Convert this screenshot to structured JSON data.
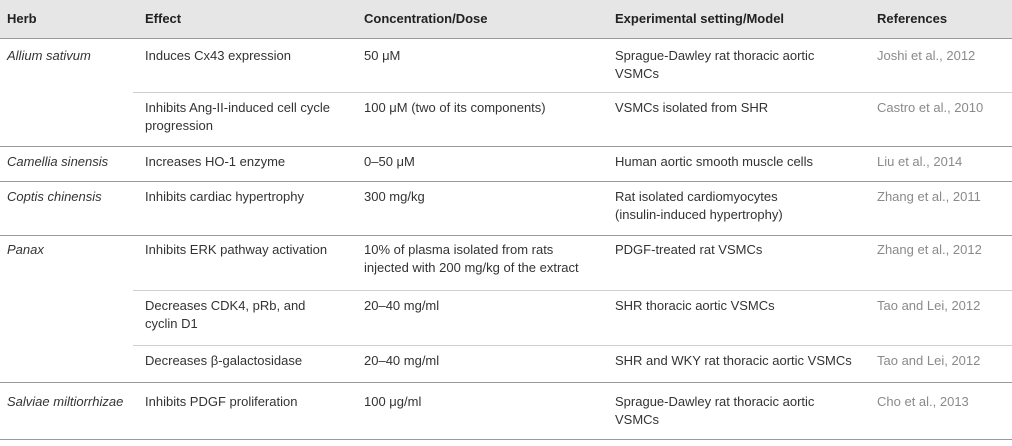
{
  "header": {
    "herb": "Herb",
    "effect": "Effect",
    "concentration": "Concentration/Dose",
    "setting": "Experimental setting/Model",
    "references": "References"
  },
  "rows": [
    {
      "herb": "Allium sativum",
      "effect": [
        "Induces Cx43 expression"
      ],
      "dose": [
        "50 μM"
      ],
      "setting": [
        "Sprague-Dawley rat thoracic aortic",
        "VSMCs"
      ],
      "ref": "Joshi et al., 2012"
    },
    {
      "herb": "",
      "effect": [
        "Inhibits Ang-II-induced cell cycle",
        "progression"
      ],
      "dose": [
        "100 μM (two of its components)"
      ],
      "setting": [
        "VSMCs isolated from SHR"
      ],
      "ref": "Castro et al., 2010"
    },
    {
      "herb": "Camellia sinensis",
      "effect": [
        "Increases HO-1 enzyme"
      ],
      "dose": [
        "0–50 μM"
      ],
      "setting": [
        "Human aortic smooth muscle cells"
      ],
      "ref": "Liu et al., 2014"
    },
    {
      "herb": "Coptis chinensis",
      "effect": [
        "Inhibits cardiac hypertrophy"
      ],
      "dose": [
        "300 mg/kg"
      ],
      "setting": [
        "Rat isolated cardiomyocytes",
        "(insulin-induced hypertrophy)"
      ],
      "ref": "Zhang et al., 2011"
    },
    {
      "herb": "Panax",
      "effect": [
        "Inhibits ERK pathway activation"
      ],
      "dose": [
        "10% of plasma isolated from rats",
        "injected with 200 mg/kg of the extract"
      ],
      "setting": [
        "PDGF-treated rat VSMCs"
      ],
      "ref": "Zhang et al., 2012"
    },
    {
      "herb": "",
      "effect": [
        "Decreases CDK4, pRb, and",
        "cyclin D1"
      ],
      "dose": [
        "20–40 mg/ml"
      ],
      "setting": [
        "SHR thoracic aortic VSMCs"
      ],
      "ref": "Tao and Lei, 2012"
    },
    {
      "herb": "",
      "effect": [
        "Decreases β-galactosidase"
      ],
      "dose": [
        "20–40 mg/ml"
      ],
      "setting": [
        "SHR and WKY rat thoracic aortic VSMCs"
      ],
      "ref": "Tao and Lei, 2012"
    },
    {
      "herb": "Salviae miltiorrhizae",
      "effect": [
        "Inhibits PDGF proliferation"
      ],
      "dose": [
        "100 μg/ml"
      ],
      "setting": [
        "Sprague-Dawley rat thoracic aortic",
        "VSMCs"
      ],
      "ref": "Cho et al., 2013"
    }
  ]
}
